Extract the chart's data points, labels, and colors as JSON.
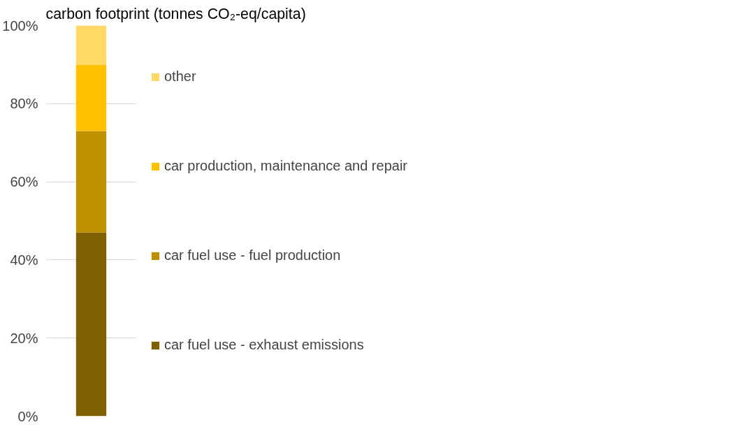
{
  "chart_data": {
    "type": "bar",
    "stacked": true,
    "title": "carbon footprint (tonnes CO₂-eq/capita)",
    "categories": [
      null
    ],
    "series": [
      {
        "name": "car fuel use - exhaust emissions",
        "color": "#7f6000",
        "values": [
          47
        ]
      },
      {
        "name": "car fuel use - fuel production",
        "color": "#bf9000",
        "values": [
          26
        ]
      },
      {
        "name": "car production, maintenance and repair",
        "color": "#ffc000",
        "values": [
          17
        ]
      },
      {
        "name": "other",
        "color": "#ffd966",
        "values": [
          10
        ]
      }
    ],
    "ylim": [
      0,
      100
    ],
    "yticks": [
      {
        "value": 0,
        "label": "0%"
      },
      {
        "value": 20,
        "label": "20%"
      },
      {
        "value": 40,
        "label": "40%"
      },
      {
        "value": 60,
        "label": "60%"
      },
      {
        "value": 80,
        "label": "80%"
      },
      {
        "value": 100,
        "label": "100%"
      }
    ],
    "grid": "y",
    "legend": "right",
    "tick_labels": "y"
  }
}
